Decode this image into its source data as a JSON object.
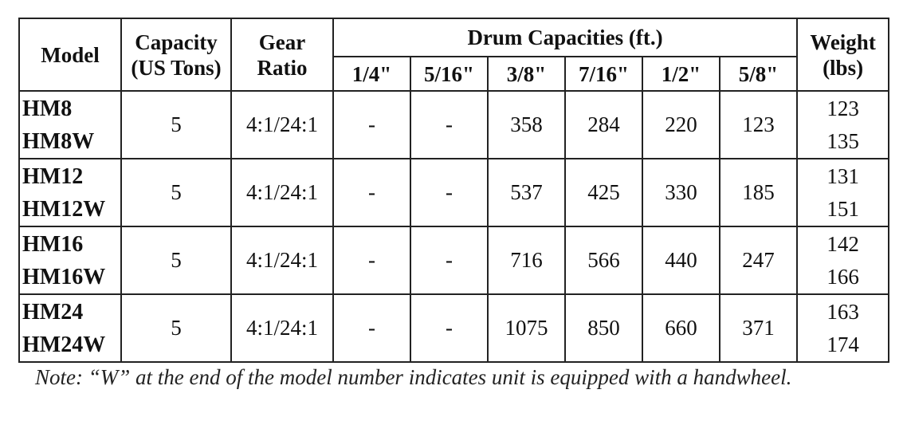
{
  "table": {
    "headers": {
      "model": "Model",
      "capacity": [
        "Capacity",
        "(US Tons)"
      ],
      "gear": [
        "Gear",
        "Ratio"
      ],
      "drum": "Drum Capacities (ft.)",
      "weight": [
        "Weight",
        "(lbs)"
      ],
      "drum_sizes": [
        "1/4\"",
        "5/16\"",
        "3/8\"",
        "7/16\"",
        "1/2\"",
        "5/8\""
      ]
    },
    "rows": [
      {
        "models": [
          "HM8",
          "HM8W"
        ],
        "capacity": "5",
        "gear": "4:1/24:1",
        "drum": [
          "-",
          "-",
          "358",
          "284",
          "220",
          "123"
        ],
        "weights": [
          "123",
          "135"
        ]
      },
      {
        "models": [
          "HM12",
          "HM12W"
        ],
        "capacity": "5",
        "gear": "4:1/24:1",
        "drum": [
          "-",
          "-",
          "537",
          "425",
          "330",
          "185"
        ],
        "weights": [
          "131",
          "151"
        ]
      },
      {
        "models": [
          "HM16",
          "HM16W"
        ],
        "capacity": "5",
        "gear": "4:1/24:1",
        "drum": [
          "-",
          "-",
          "716",
          "566",
          "440",
          "247"
        ],
        "weights": [
          "142",
          "166"
        ]
      },
      {
        "models": [
          "HM24",
          "HM24W"
        ],
        "capacity": "5",
        "gear": "4:1/24:1",
        "drum": [
          "-",
          "-",
          "1075",
          "850",
          "660",
          "371"
        ],
        "weights": [
          "163",
          "174"
        ]
      }
    ]
  },
  "note": "Note: “W” at the end of the model number indicates unit is equipped with a handwheel."
}
